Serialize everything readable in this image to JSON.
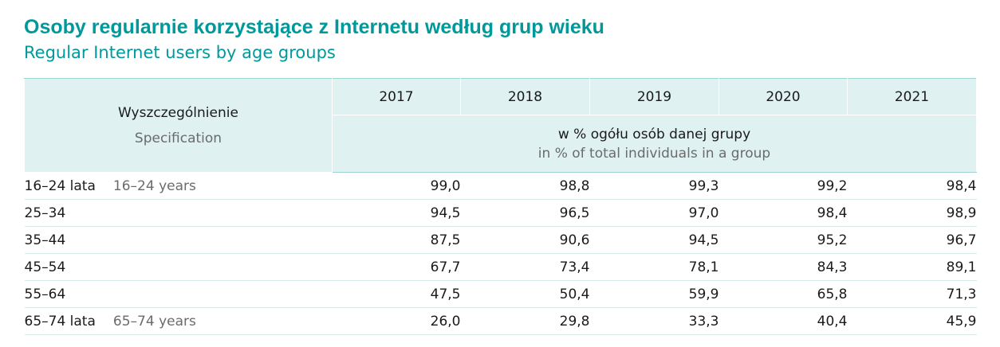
{
  "title_pl": "Osoby regularnie korzystające z Internetu według grup wieku",
  "title_en": "Regular Internet users by age groups",
  "header": {
    "spec_pl": "Wyszczególnienie",
    "spec_en": "Specification",
    "years": [
      "2017",
      "2018",
      "2019",
      "2020",
      "2021"
    ],
    "unit_pl": "w % ogółu osób danej grupy",
    "unit_en": "in % of total individuals in a group"
  },
  "rows": [
    {
      "label_pl": "16–24 lata",
      "label_en": "16–24 years",
      "values": [
        "99,0",
        "98,8",
        "99,3",
        "99,2",
        "98,4"
      ]
    },
    {
      "label_pl": "25–34",
      "label_en": "",
      "values": [
        "94,5",
        "96,5",
        "97,0",
        "98,4",
        "98,9"
      ]
    },
    {
      "label_pl": "35–44",
      "label_en": "",
      "values": [
        "87,5",
        "90,6",
        "94,5",
        "95,2",
        "96,7"
      ]
    },
    {
      "label_pl": "45–54",
      "label_en": "",
      "values": [
        "67,7",
        "73,4",
        "78,1",
        "84,3",
        "89,1"
      ]
    },
    {
      "label_pl": "55–64",
      "label_en": "",
      "values": [
        "47,5",
        "50,4",
        "59,9",
        "65,8",
        "71,3"
      ]
    },
    {
      "label_pl": "65–74 lata",
      "label_en": "65–74 years",
      "values": [
        "26,0",
        "29,8",
        "33,3",
        "40,4",
        "45,9"
      ]
    }
  ],
  "colors": {
    "accent": "#00999b",
    "header_bg": "#dff1f1",
    "rule": "#9fd3d3"
  }
}
